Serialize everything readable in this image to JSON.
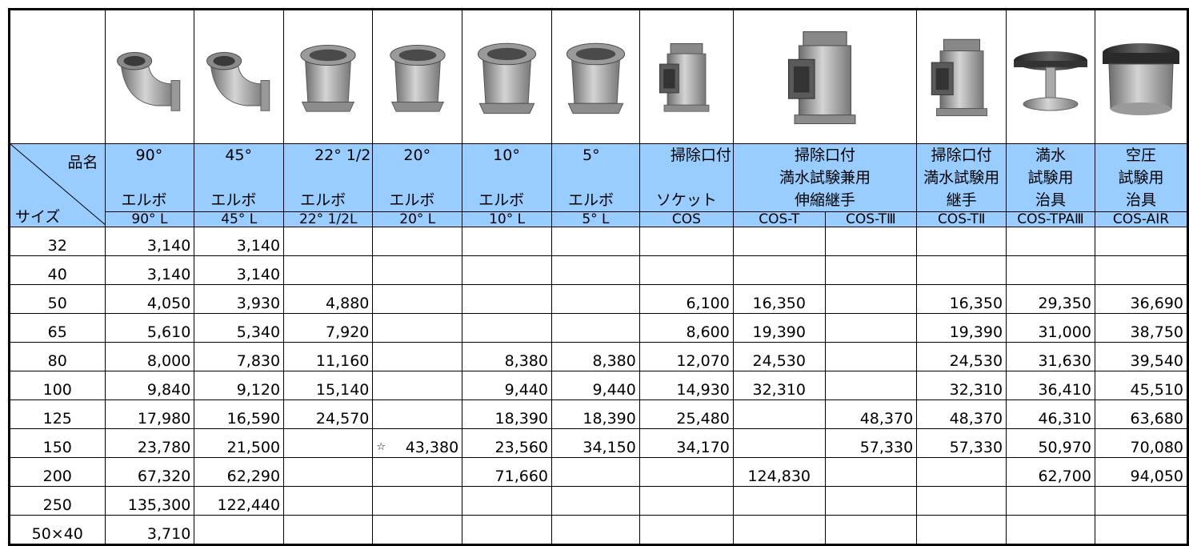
{
  "corner": {
    "top": "品名",
    "bottom": "サイズ"
  },
  "products": [
    {
      "name": [
        "90°",
        "エルボ"
      ],
      "codes": [
        "90° L"
      ]
    },
    {
      "name": [
        "45°",
        "エルボ"
      ],
      "codes": [
        "45° L"
      ]
    },
    {
      "name": [
        "22° 1/2",
        "エルボ"
      ],
      "codes": [
        "22° 1/2L"
      ]
    },
    {
      "name": [
        "20°",
        "エルボ"
      ],
      "codes": [
        "20° L"
      ]
    },
    {
      "name": [
        "10°",
        "エルボ"
      ],
      "codes": [
        "10° L"
      ]
    },
    {
      "name": [
        "5°",
        "エルボ"
      ],
      "codes": [
        "5° L"
      ]
    },
    {
      "name": [
        "掃除口付",
        "ソケット"
      ],
      "codes": [
        "COS"
      ]
    },
    {
      "name": [
        "掃除口付",
        "満水試験兼用",
        "伸縮継手"
      ],
      "codes": [
        "COS-T",
        "COS-TⅢ"
      ]
    },
    {
      "name": [
        "掃除口付",
        "満水試験用",
        "継手"
      ],
      "codes": [
        "COS-TⅡ"
      ]
    },
    {
      "name": [
        "満水",
        "試験用",
        "治具"
      ],
      "codes": [
        "COS-TPAⅢ"
      ]
    },
    {
      "name": [
        "空圧",
        "試験用",
        "治具"
      ],
      "codes": [
        "COS-AIR"
      ]
    }
  ],
  "rows": [
    {
      "size": "32",
      "prices": [
        "3,140",
        "3,140",
        null,
        null,
        null,
        null,
        null,
        null,
        null,
        null,
        null,
        null
      ]
    },
    {
      "size": "40",
      "prices": [
        "3,140",
        "3,140",
        null,
        null,
        null,
        null,
        null,
        null,
        null,
        null,
        null,
        null
      ]
    },
    {
      "size": "50",
      "prices": [
        "4,050",
        "3,930",
        "4,880",
        null,
        null,
        null,
        "6,100",
        "16,350",
        null,
        "16,350",
        "29,350",
        "36,690"
      ]
    },
    {
      "size": "65",
      "prices": [
        "5,610",
        "5,340",
        "7,920",
        null,
        null,
        null,
        "8,600",
        "19,390",
        null,
        "19,390",
        "31,000",
        "38,750"
      ]
    },
    {
      "size": "80",
      "prices": [
        "8,000",
        "7,830",
        "11,160",
        null,
        "8,380",
        "8,380",
        "12,070",
        "24,530",
        null,
        "24,530",
        "31,630",
        "39,540"
      ]
    },
    {
      "size": "100",
      "prices": [
        "9,840",
        "9,120",
        "15,140",
        null,
        "9,440",
        "9,440",
        "14,930",
        "32,310",
        null,
        "32,310",
        "36,410",
        "45,510"
      ]
    },
    {
      "size": "125",
      "prices": [
        "17,980",
        "16,590",
        "24,570",
        null,
        "18,390",
        "18,390",
        "25,480",
        null,
        "48,370",
        "48,370",
        "46,310",
        "63,680"
      ]
    },
    {
      "size": "150",
      "prices": [
        "23,780",
        "21,500",
        null,
        {
          "note": "☆",
          "value": "43,380"
        },
        "23,560",
        "34,150",
        "34,170",
        null,
        "57,330",
        "57,330",
        "50,970",
        "70,080"
      ]
    },
    {
      "size": "200",
      "prices": [
        "67,320",
        "62,290",
        null,
        null,
        "71,660",
        null,
        null,
        "124,830",
        null,
        null,
        "62,700",
        "94,050"
      ]
    },
    {
      "size": "250",
      "prices": [
        "135,300",
        "122,440",
        null,
        null,
        null,
        null,
        null,
        null,
        null,
        null,
        null,
        null
      ]
    },
    {
      "size": "50×40",
      "prices": [
        "3,710",
        null,
        null,
        null,
        null,
        null,
        null,
        null,
        null,
        null,
        null,
        null
      ]
    }
  ]
}
